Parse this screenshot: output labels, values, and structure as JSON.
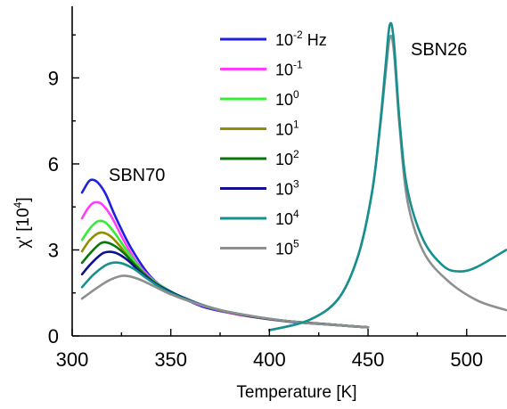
{
  "chart_data": {
    "type": "line",
    "xlabel": "Temperature [K]",
    "ylabel": {
      "main": "χ' [10",
      "sup": "4",
      "tail": "]"
    },
    "xlim": [
      300,
      520
    ],
    "ylim": [
      0,
      11.5
    ],
    "xticks": [
      300,
      350,
      400,
      450,
      500
    ],
    "yticks": [
      0,
      3,
      6,
      9
    ],
    "annotations": [
      {
        "text": "SBN70"
      },
      {
        "text": "SBN26"
      }
    ],
    "legend": {
      "placement": "top-center",
      "entries": [
        {
          "base": "10",
          "sup": "-2",
          "suffix": " Hz",
          "color": "#1f1fdf"
        },
        {
          "base": "10",
          "sup": "-1",
          "suffix": "",
          "color": "#ff3cff"
        },
        {
          "base": "10",
          "sup": "0",
          "suffix": "",
          "color": "#33ee33"
        },
        {
          "base": "10",
          "sup": "1",
          "suffix": "",
          "color": "#8f8f00"
        },
        {
          "base": "10",
          "sup": "2",
          "suffix": "",
          "color": "#087708"
        },
        {
          "base": "10",
          "sup": "3",
          "suffix": "",
          "color": "#10108f"
        },
        {
          "base": "10",
          "sup": "4",
          "suffix": "",
          "color": "#168f8f"
        },
        {
          "base": "10",
          "sup": "5",
          "suffix": "",
          "color": "#8f8f8f"
        }
      ]
    },
    "series": [
      {
        "color": "#1f1fdf",
        "x": [
          305,
          308,
          310,
          313,
          317,
          322,
          330,
          340,
          350,
          365,
          380,
          395,
          410,
          425,
          440,
          450
        ],
        "y": [
          5.0,
          5.35,
          5.45,
          5.35,
          4.95,
          4.15,
          3.05,
          2.05,
          1.55,
          1.05,
          0.8,
          0.63,
          0.5,
          0.42,
          0.35,
          0.3
        ]
      },
      {
        "color": "#ff3cff",
        "x": [
          305,
          308,
          311,
          315,
          320,
          326,
          334,
          345,
          360,
          380,
          400,
          420,
          440,
          450
        ],
        "y": [
          4.1,
          4.45,
          4.65,
          4.6,
          4.15,
          3.35,
          2.45,
          1.75,
          1.2,
          0.8,
          0.58,
          0.45,
          0.35,
          0.3
        ]
      },
      {
        "color": "#33ee33",
        "x": [
          305,
          309,
          313,
          317,
          322,
          329,
          338,
          350,
          365,
          385,
          405,
          425,
          440,
          450
        ],
        "y": [
          3.35,
          3.75,
          4.0,
          3.95,
          3.55,
          2.85,
          2.1,
          1.55,
          1.1,
          0.75,
          0.55,
          0.43,
          0.35,
          0.3
        ]
      },
      {
        "color": "#8f8f00",
        "x": [
          305,
          309,
          314,
          319,
          324,
          331,
          340,
          352,
          367,
          387,
          407,
          427,
          441,
          450
        ],
        "y": [
          2.95,
          3.35,
          3.6,
          3.5,
          3.15,
          2.55,
          1.95,
          1.45,
          1.05,
          0.72,
          0.53,
          0.42,
          0.34,
          0.3
        ]
      },
      {
        "color": "#087708",
        "x": [
          305,
          310,
          315,
          320,
          326,
          333,
          342,
          354,
          369,
          389,
          409,
          429,
          442,
          450
        ],
        "y": [
          2.55,
          2.95,
          3.25,
          3.2,
          2.9,
          2.4,
          1.85,
          1.4,
          1.0,
          0.7,
          0.52,
          0.41,
          0.34,
          0.3
        ]
      },
      {
        "color": "#10108f",
        "x": [
          305,
          310,
          316,
          322,
          328,
          335,
          344,
          356,
          371,
          391,
          411,
          431,
          443,
          450
        ],
        "y": [
          2.15,
          2.55,
          2.9,
          2.9,
          2.65,
          2.2,
          1.75,
          1.35,
          0.97,
          0.68,
          0.5,
          0.4,
          0.33,
          0.3
        ]
      },
      {
        "color": "#168f8f",
        "x": [
          305,
          311,
          318,
          324,
          331,
          338,
          347,
          359,
          374,
          394,
          413,
          432,
          444,
          450
        ],
        "y": [
          1.7,
          2.15,
          2.5,
          2.55,
          2.35,
          2.0,
          1.6,
          1.25,
          0.92,
          0.66,
          0.49,
          0.39,
          0.33,
          0.3
        ]
      },
      {
        "color": "#8f8f8f",
        "x": [
          305,
          312,
          319,
          326,
          333,
          341,
          350,
          362,
          377,
          397,
          416,
          434,
          445,
          450
        ],
        "y": [
          1.3,
          1.65,
          1.95,
          2.1,
          2.0,
          1.75,
          1.45,
          1.15,
          0.87,
          0.63,
          0.47,
          0.38,
          0.32,
          0.3
        ]
      },
      {
        "color": "#8f8f8f",
        "x": [
          400,
          420,
          435,
          445,
          452,
          456,
          459,
          461,
          463,
          466,
          470,
          478,
          490,
          505,
          520
        ],
        "y": [
          0.2,
          0.55,
          1.3,
          2.8,
          5.0,
          7.2,
          9.2,
          10.4,
          10.0,
          7.3,
          4.7,
          2.95,
          1.95,
          1.25,
          0.9
        ]
      },
      {
        "color": "#168f8f",
        "x": [
          400,
          420,
          435,
          445,
          452,
          456,
          459,
          461,
          463,
          466,
          470,
          478,
          488,
          496,
          505,
          520
        ],
        "y": [
          0.2,
          0.55,
          1.3,
          2.8,
          5.0,
          7.3,
          9.5,
          10.85,
          10.35,
          7.5,
          5.1,
          3.35,
          2.45,
          2.25,
          2.4,
          3.0
        ]
      }
    ]
  }
}
